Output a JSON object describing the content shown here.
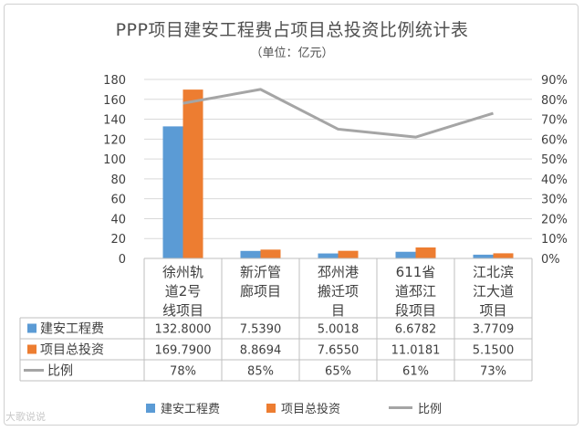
{
  "title": "PPP项目建安工程费占项目总投资比例统计表",
  "subtitle": "（单位：亿元）",
  "watermark": "大歌说说",
  "colors": {
    "build": "#5b9bd5",
    "total": "#ed7d31",
    "ratio": "#a5a5a5"
  },
  "chart_data": {
    "type": "bar",
    "categories": [
      "徐州轨道2号线项目",
      "新沂管廊项目",
      "邳州港搬迁项目",
      "611省道邳江段项目",
      "江北滨江大道项目"
    ],
    "category_lines": [
      [
        "徐州轨",
        "道2号",
        "线项目"
      ],
      [
        "新沂管",
        "廊项目"
      ],
      [
        "邳州港",
        "搬迁项",
        "目"
      ],
      [
        "611省",
        "道邳江",
        "段项目"
      ],
      [
        "江北滨",
        "江大道",
        "项目"
      ]
    ],
    "series": [
      {
        "name": "建安工程费",
        "type": "bar",
        "axis": "left",
        "values": [
          132.8,
          7.539,
          5.0018,
          6.6782,
          3.7709
        ],
        "display": [
          "132.8000",
          "7.5390",
          "5.0018",
          "6.6782",
          "3.7709"
        ]
      },
      {
        "name": "项目总投资",
        "type": "bar",
        "axis": "left",
        "values": [
          169.79,
          8.8694,
          7.655,
          11.0181,
          5.15
        ],
        "display": [
          "169.7900",
          "8.8694",
          "7.6550",
          "11.0181",
          "5.1500"
        ]
      },
      {
        "name": "比例",
        "type": "line",
        "axis": "right",
        "values": [
          78,
          85,
          65,
          61,
          73
        ],
        "display": [
          "78%",
          "85%",
          "65%",
          "61%",
          "73%"
        ]
      }
    ],
    "ylim": [
      0,
      180
    ],
    "yticks": [
      0,
      20,
      40,
      60,
      80,
      100,
      120,
      140,
      160,
      180
    ],
    "y2lim": [
      0,
      90
    ],
    "y2ticks": [
      "0%",
      "10%",
      "20%",
      "30%",
      "40%",
      "50%",
      "60%",
      "70%",
      "80%",
      "90%"
    ],
    "legend_position": "bottom",
    "data_table": true
  }
}
